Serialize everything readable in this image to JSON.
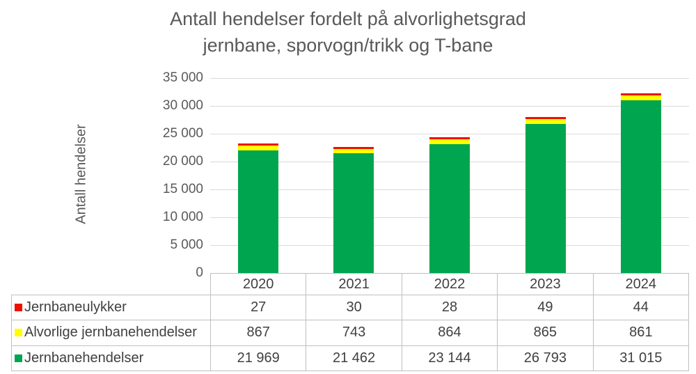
{
  "title": {
    "line1": "Antall hendelser fordelt på alvorlighetsgrad",
    "line2": "jernbane, sporvogn/trikk og T-bane"
  },
  "chart_data": {
    "type": "bar",
    "stacked": true,
    "title": "Antall hendelser fordelt på alvorlighetsgrad jernbane, sporvogn/trikk og T-bane",
    "ylabel": "Antall hendelser",
    "xlabel": "",
    "categories": [
      "2020",
      "2021",
      "2022",
      "2023",
      "2024"
    ],
    "series": [
      {
        "name": "Jernbaneulykker",
        "color": "#ee1100",
        "values": [
          27,
          30,
          28,
          49,
          44
        ]
      },
      {
        "name": "Alvorlige jernbanehendelser",
        "color": "#ffff00",
        "values": [
          867,
          743,
          864,
          865,
          861
        ]
      },
      {
        "name": "Jernbanehendelser",
        "color": "#00a550",
        "values": [
          21969,
          21462,
          23144,
          26793,
          31015
        ]
      }
    ],
    "ylim": [
      0,
      35000
    ],
    "ytick_step": 5000,
    "yticks": [
      "35 000",
      "30 000",
      "25 000",
      "20 000",
      "15 000",
      "10 000",
      "5 000",
      "0"
    ],
    "grid": true,
    "legend_position": "data-table-left"
  },
  "table": {
    "rows": [
      {
        "label": "Jernbaneulykker",
        "color": "#ee1100",
        "values": [
          "27",
          "30",
          "28",
          "49",
          "44"
        ]
      },
      {
        "label": "Alvorlige jernbanehendelser",
        "color": "#ffff00",
        "values": [
          "867",
          "743",
          "864",
          "865",
          "861"
        ]
      },
      {
        "label": "Jernbanehendelser",
        "color": "#00a550",
        "values": [
          "21 969",
          "21 462",
          "23 144",
          "26 793",
          "31 015"
        ]
      }
    ]
  },
  "colors": {
    "title_text": "#595959",
    "table_text": "#404040",
    "gridline": "#d9d9d9",
    "table_border": "#bfbfbf"
  }
}
